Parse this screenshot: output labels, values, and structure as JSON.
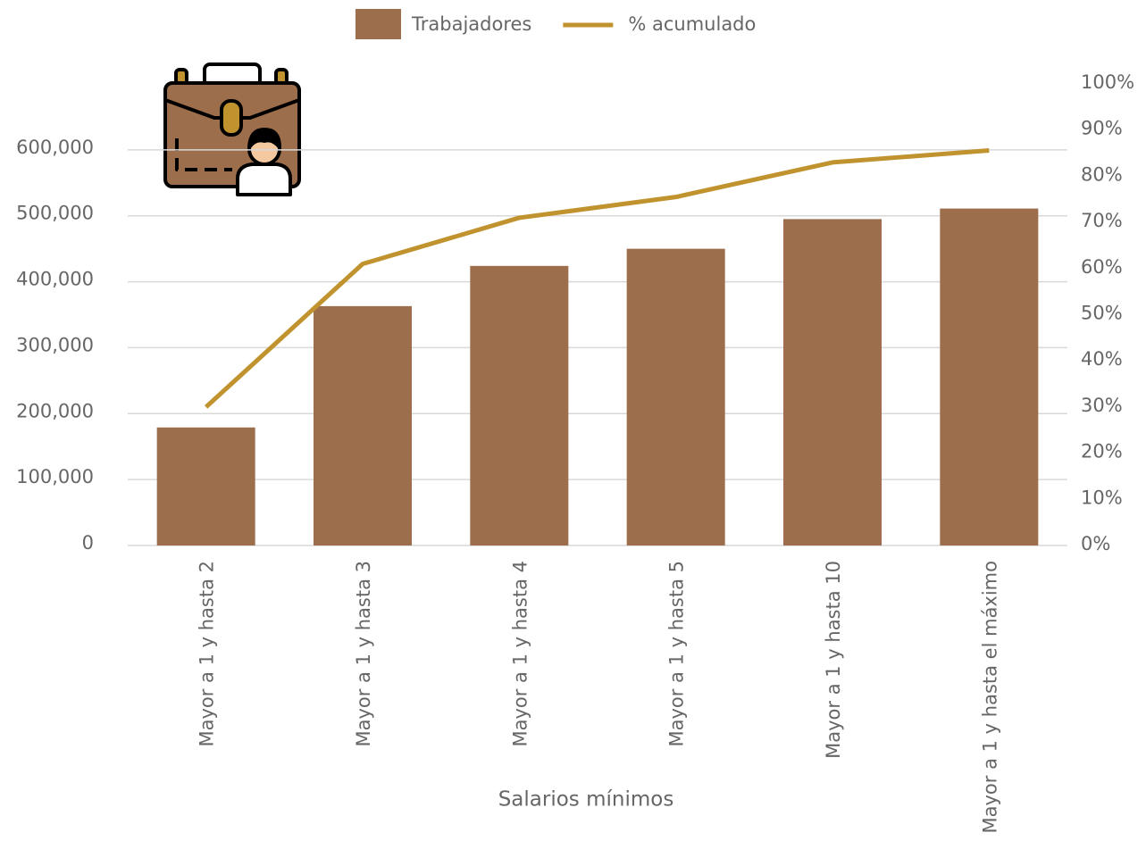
{
  "chart_data": {
    "type": "bar",
    "xlabel": "Salarios mínimos",
    "categories": [
      "Mayor a 1 y hasta 2",
      "Mayor a 1 y hasta 3",
      "Mayor a 1 y hasta 4",
      "Mayor a 1 y hasta 5",
      "Mayor a 1 y hasta 10",
      "Mayor a 1 y hasta el máximo"
    ],
    "series": [
      {
        "name": "Trabajadores",
        "type": "bar",
        "color": "#9c6e4b",
        "values": [
          179000,
          363000,
          424000,
          450000,
          495000,
          511000
        ]
      },
      {
        "name": "% acumulado",
        "type": "line",
        "axis": "y2",
        "color": "#c0932f",
        "values": [
          30,
          61,
          71,
          75.5,
          83,
          85.6
        ]
      }
    ],
    "ylim": [
      0,
      700000
    ],
    "yticks": [
      0,
      {
        "value": 100000,
        "label": "100,000"
      },
      {
        "value": 200000,
        "label": "200,000"
      },
      {
        "value": 300000,
        "label": "300,000"
      },
      {
        "value": 400000,
        "label": "400,000"
      },
      {
        "value": 500000,
        "label": "500,000"
      },
      {
        "value": 600000,
        "label": "600,000"
      }
    ],
    "y2lim": [
      0,
      100
    ],
    "y2ticks": [
      {
        "value": 0,
        "label": "0%"
      },
      {
        "value": 10,
        "label": "10%"
      },
      {
        "value": 20,
        "label": "20%"
      },
      {
        "value": 30,
        "label": "30%"
      },
      {
        "value": 40,
        "label": "40%"
      },
      {
        "value": 50,
        "label": "50%"
      },
      {
        "value": 60,
        "label": "60%"
      },
      {
        "value": 70,
        "label": "70%"
      },
      {
        "value": 80,
        "label": "80%"
      },
      {
        "value": 90,
        "label": "90%"
      },
      {
        "value": 100,
        "label": "100%"
      }
    ],
    "grid": true,
    "legend": "top"
  }
}
